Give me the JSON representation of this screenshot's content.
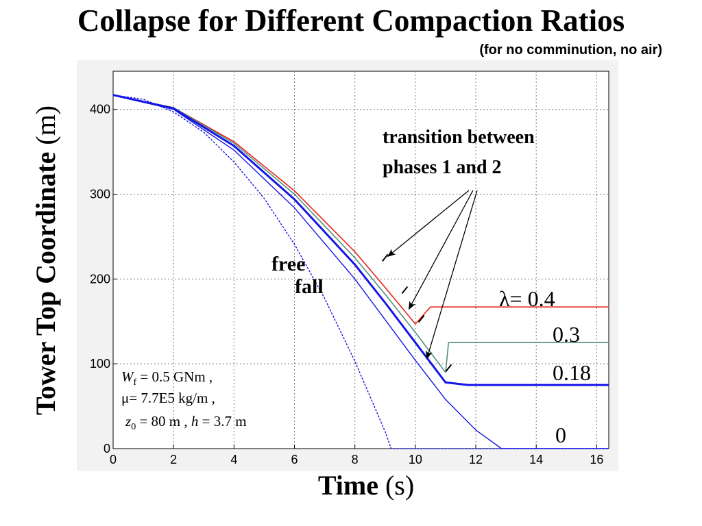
{
  "title": "Collapse for Different Compaction Ratios",
  "subtitle": "(for no comminution, no air)",
  "chart_data": {
    "type": "line",
    "xlabel": {
      "main": "Time",
      "unit": "(s)"
    },
    "ylabel": {
      "main": "Tower Top Coordinate",
      "unit": "(m)"
    },
    "xlim": [
      0,
      16.4
    ],
    "ylim": [
      0,
      445
    ],
    "xticks": [
      0,
      2,
      4,
      6,
      8,
      10,
      12,
      14,
      16
    ],
    "yticks": [
      0,
      100,
      200,
      300,
      400
    ],
    "grid": true,
    "colors": {
      "red": "#e8241c",
      "green": "#4f8f7f",
      "blue": "#1515e8",
      "dark_blue": "#1a1ad0"
    },
    "series": [
      {
        "label": "λ= 0.4",
        "color": "#e8241c",
        "width": 1.6,
        "dashed": false,
        "x": [
          0,
          2,
          4,
          6,
          8,
          9,
          10,
          10.5,
          12,
          14,
          16.4
        ],
        "y": [
          417,
          402,
          362,
          304,
          232,
          190,
          147,
          167,
          167,
          167,
          167
        ]
      },
      {
        "label": "0.3",
        "color": "#4f8f7f",
        "width": 1.6,
        "dashed": false,
        "x": [
          0,
          2,
          4,
          6,
          8,
          9,
          10,
          11,
          11.1,
          12,
          14,
          16.4
        ],
        "y": [
          417,
          402,
          360,
          300,
          225,
          182,
          137,
          90,
          125,
          125,
          125,
          125
        ]
      },
      {
        "label": "0.18",
        "color": "#1515e8",
        "width": 3,
        "dashed": false,
        "x": [
          0,
          2,
          4,
          6,
          8,
          9,
          10,
          11,
          11.75,
          12,
          14,
          16.4
        ],
        "y": [
          417,
          401,
          357,
          294,
          217,
          172,
          125,
          78,
          75,
          75,
          75,
          75
        ]
      },
      {
        "label": "0",
        "color": "#1515e8",
        "width": 1.4,
        "dashed": false,
        "x": [
          0,
          2,
          4,
          6,
          8,
          9,
          10,
          11,
          12,
          12.85,
          14,
          16.4
        ],
        "y": [
          417,
          400,
          352,
          284,
          200,
          152,
          104,
          58,
          22,
          0,
          0,
          0
        ]
      },
      {
        "label": "free fall",
        "color": "#1515e8",
        "width": 1.4,
        "dashed": true,
        "x": [
          0,
          1,
          2,
          3,
          4,
          5,
          6,
          7,
          8,
          9,
          9.2,
          10,
          12,
          14,
          16.4
        ],
        "y": [
          417,
          412,
          397,
          373,
          338,
          295,
          241,
          177,
          103,
          20,
          0,
          0,
          0,
          0,
          0
        ]
      }
    ],
    "transition_marks": [
      {
        "x": 9.0,
        "y": 225
      },
      {
        "x": 9.65,
        "y": 187
      },
      {
        "x": 10.2,
        "y": 153
      },
      {
        "x": 11.1,
        "y": 95
      }
    ],
    "annotations": {
      "transition": [
        "transition between",
        "phases 1 and 2"
      ],
      "free_fall": [
        "free",
        "fall"
      ],
      "lambda_labels": [
        "λ= 0.4",
        "0.3",
        "0.18",
        "0"
      ],
      "params": {
        "line1": "W_f = 0.5 GNm ,",
        "line2": "μ= 7.7E5 kg/m ,",
        "line3": "z_0 = 80 m , h = 3.7 m"
      }
    }
  }
}
